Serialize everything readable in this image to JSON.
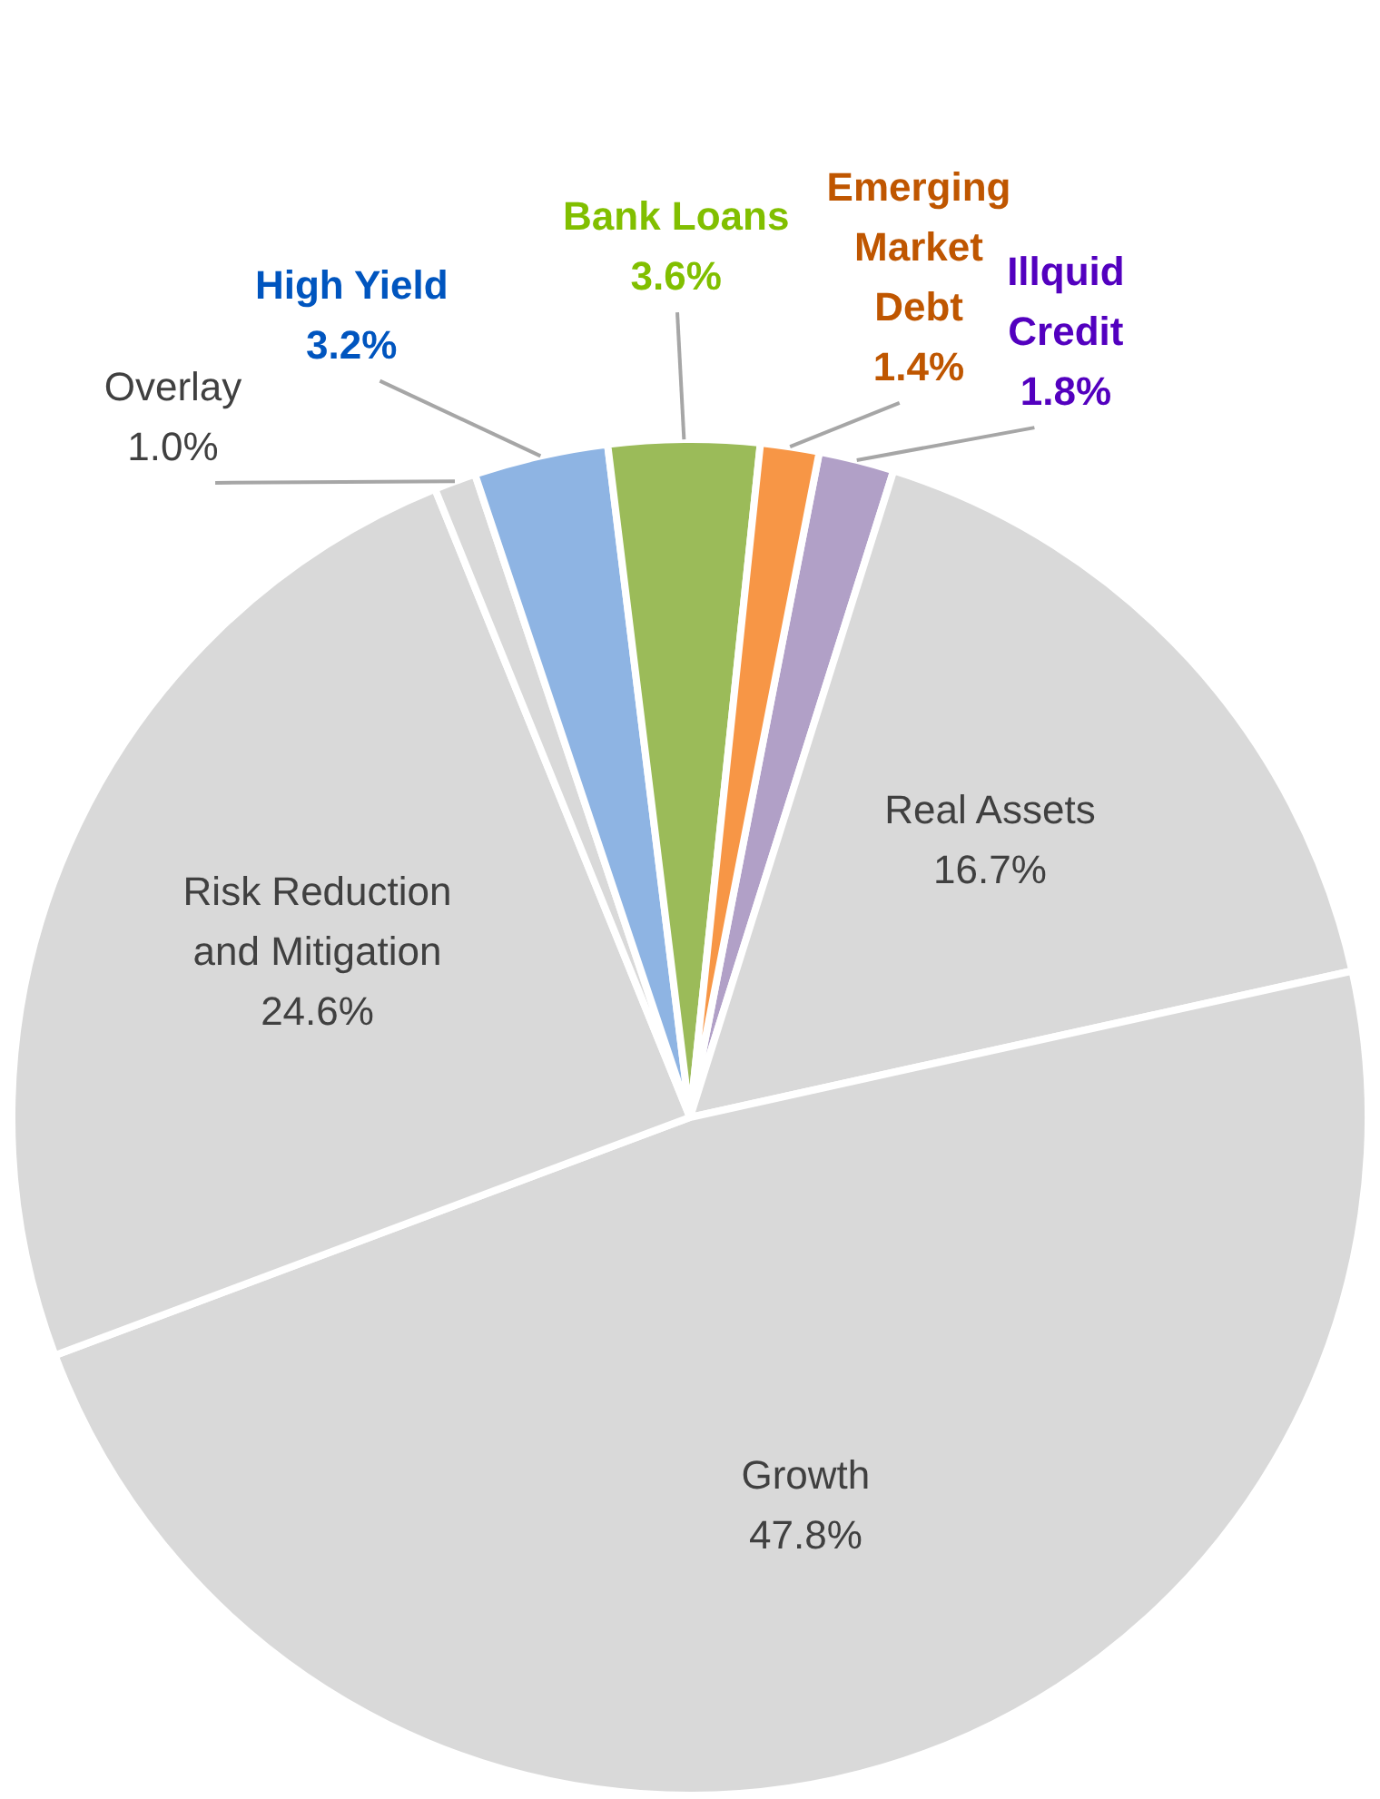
{
  "chart_data": {
    "type": "pie",
    "categories": [
      "Illquid\nCredit",
      "Real Assets",
      "Growth",
      "Risk Reduction\nand Mitigation",
      "Overlay",
      "High Yield",
      "Bank Loans",
      "Emerging\nMarket\nDebt"
    ],
    "values": [
      1.8,
      16.7,
      47.8,
      24.6,
      1.0,
      3.2,
      3.6,
      1.4
    ],
    "colors": [
      "#b1a0c7",
      "#d9d9d9",
      "#d9d9d9",
      "#d9d9d9",
      "#d9d9d9",
      "#8eb4e3",
      "#9bbb59",
      "#f79646"
    ],
    "value_labels": [
      "1.8%",
      "16.7%",
      "47.8%",
      "24.6%",
      "1.0%",
      "3.2%",
      "3.6%",
      "1.4%"
    ],
    "legend": false
  }
}
